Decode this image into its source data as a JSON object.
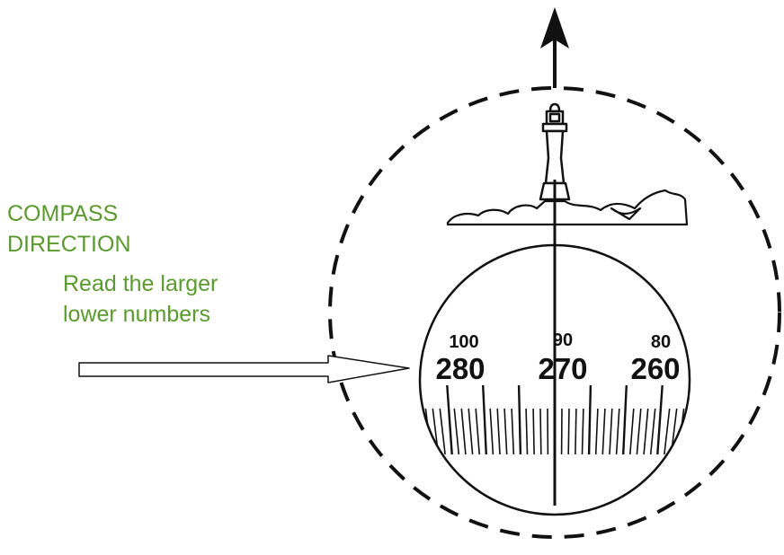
{
  "labels": {
    "title_line1": "COMPASS",
    "title_line2": "DIRECTION",
    "note_line1": "Read the larger",
    "note_line2": "lower numbers"
  },
  "dial": {
    "upper_numbers": [
      "100",
      "90",
      "80"
    ],
    "lower_numbers": [
      "280",
      "270",
      "260"
    ]
  },
  "colors": {
    "label_green": "#5a9a2e",
    "ink": "#111111"
  },
  "icons": {
    "lighthouse": "lighthouse-icon",
    "north_arrow": "up-arrow-icon",
    "pointer_arrow": "right-arrow-icon"
  }
}
